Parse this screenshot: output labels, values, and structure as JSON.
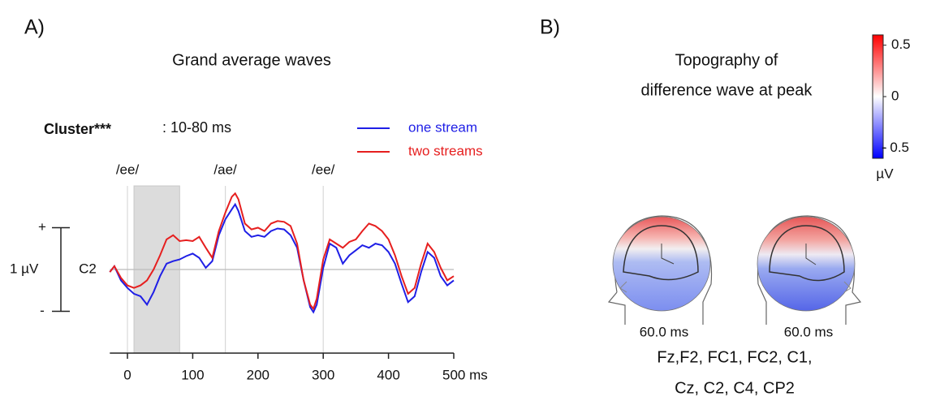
{
  "chart_data": [
    {
      "type": "line",
      "panel": "A)",
      "title": "Grand average waves",
      "annotation_bold": "Cluster***",
      "annotation": ": 10-80 ms",
      "cluster_range": [
        10,
        80
      ],
      "channel": "C2",
      "scale_label": "1 µV",
      "markers": [
        {
          "x": 0,
          "label": "/ee/"
        },
        {
          "x": 150,
          "label": "/ae/"
        },
        {
          "x": 300,
          "label": "/ee/"
        }
      ],
      "x": [
        -27,
        -20,
        -10,
        0,
        10,
        20,
        30,
        40,
        50,
        60,
        70,
        80,
        90,
        100,
        110,
        120,
        130,
        140,
        150,
        160,
        165,
        170,
        180,
        190,
        200,
        210,
        220,
        230,
        240,
        250,
        260,
        270,
        280,
        285,
        290,
        300,
        310,
        320,
        330,
        340,
        350,
        360,
        370,
        380,
        390,
        400,
        410,
        420,
        430,
        440,
        450,
        460,
        470,
        480,
        490,
        500
      ],
      "series": [
        {
          "name": "one stream",
          "color": "#1f1fe6",
          "values": [
            -0.03,
            0.04,
            -0.13,
            -0.22,
            -0.29,
            -0.32,
            -0.42,
            -0.27,
            -0.08,
            0.07,
            0.1,
            0.12,
            0.16,
            0.19,
            0.14,
            0.02,
            0.1,
            0.41,
            0.6,
            0.72,
            0.78,
            0.7,
            0.46,
            0.39,
            0.41,
            0.39,
            0.46,
            0.49,
            0.48,
            0.41,
            0.26,
            -0.13,
            -0.45,
            -0.51,
            -0.42,
            0.02,
            0.31,
            0.26,
            0.07,
            0.17,
            0.23,
            0.29,
            0.26,
            0.31,
            0.29,
            0.21,
            0.07,
            -0.17,
            -0.39,
            -0.32,
            -0.03,
            0.21,
            0.14,
            -0.08,
            -0.19,
            -0.13
          ]
        },
        {
          "name": "two streams",
          "color": "#e61f1f",
          "values": [
            -0.03,
            0.04,
            -0.1,
            -0.19,
            -0.22,
            -0.19,
            -0.13,
            0,
            0.17,
            0.36,
            0.41,
            0.34,
            0.35,
            0.34,
            0.39,
            0.26,
            0.14,
            0.46,
            0.68,
            0.87,
            0.91,
            0.84,
            0.55,
            0.48,
            0.5,
            0.46,
            0.55,
            0.58,
            0.57,
            0.52,
            0.31,
            -0.13,
            -0.42,
            -0.47,
            -0.35,
            0.12,
            0.36,
            0.31,
            0.26,
            0.33,
            0.36,
            0.46,
            0.55,
            0.52,
            0.46,
            0.36,
            0.17,
            -0.08,
            -0.29,
            -0.22,
            0.07,
            0.31,
            0.21,
            0.02,
            -0.13,
            -0.08
          ]
        }
      ],
      "xlim": [
        -27,
        500
      ],
      "xticks": [
        0,
        100,
        200,
        300,
        400,
        {
          "value": 500,
          "label": "500 ms"
        }
      ],
      "ylim": [
        -1,
        1
      ],
      "yticks": [
        {
          "value": 0.5,
          "label": "+"
        },
        {
          "value": -0.5,
          "label": "-"
        }
      ]
    },
    {
      "type": "topography",
      "panel": "B)",
      "title_lines": [
        "Topography of",
        "difference wave at peak"
      ],
      "clim": [
        -0.6,
        0.6
      ],
      "colormap": [
        "#0000ff",
        "#ffffff",
        "#ff0000"
      ],
      "colorbar_ticks": [
        0.5,
        0,
        {
          "value": -0.5,
          "label": "- 0.5"
        }
      ],
      "colorbar_unit": "µV",
      "maps": [
        {
          "label": "60.0 ms"
        },
        {
          "label": "60.0 ms"
        }
      ],
      "channels_lines": [
        "Fz,F2, FC1, FC2, C1,",
        "Cz, C2, C4, CP2"
      ]
    }
  ]
}
